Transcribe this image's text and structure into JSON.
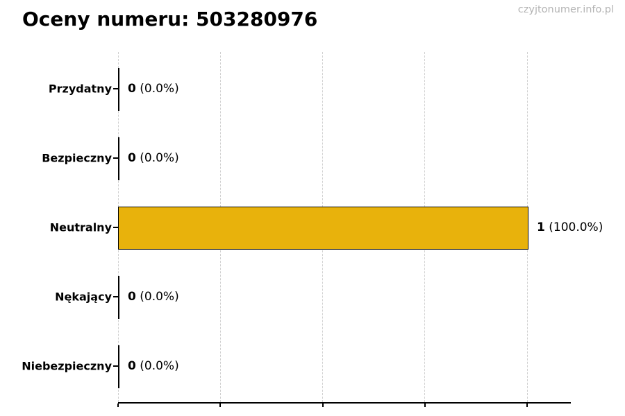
{
  "title": "Oceny numeru: 503280976",
  "watermark": "czyjtonumer.info.pl",
  "chart_data": {
    "type": "bar",
    "orientation": "horizontal",
    "title": "Oceny numeru: 503280976",
    "categories": [
      "Przydatny",
      "Bezpieczny",
      "Neutralny",
      "Nękający",
      "Niebezpieczny"
    ],
    "values": [
      0,
      0,
      1,
      0,
      0
    ],
    "value_labels": [
      {
        "count": "0",
        "pct": "(0.0%)"
      },
      {
        "count": "0",
        "pct": "(0.0%)"
      },
      {
        "count": "1",
        "pct": "(100.0%)"
      },
      {
        "count": "0",
        "pct": "(0.0%)"
      },
      {
        "count": "0",
        "pct": "(0.0%)"
      }
    ],
    "xlabel": "",
    "ylabel": "",
    "xlim": [
      0,
      1.0
    ],
    "xticks": [
      0,
      0.25,
      0.5,
      0.75,
      1.0
    ],
    "xtick_labels_visible": false,
    "grid": true,
    "legend": "none",
    "bar_color": "#e8b20c",
    "bar_border_color": "#000000",
    "gridline_color": "#cfcfcf",
    "axis_color": "#000000",
    "watermark_color": "#b3b3b3",
    "background_color": "#ffffff"
  }
}
